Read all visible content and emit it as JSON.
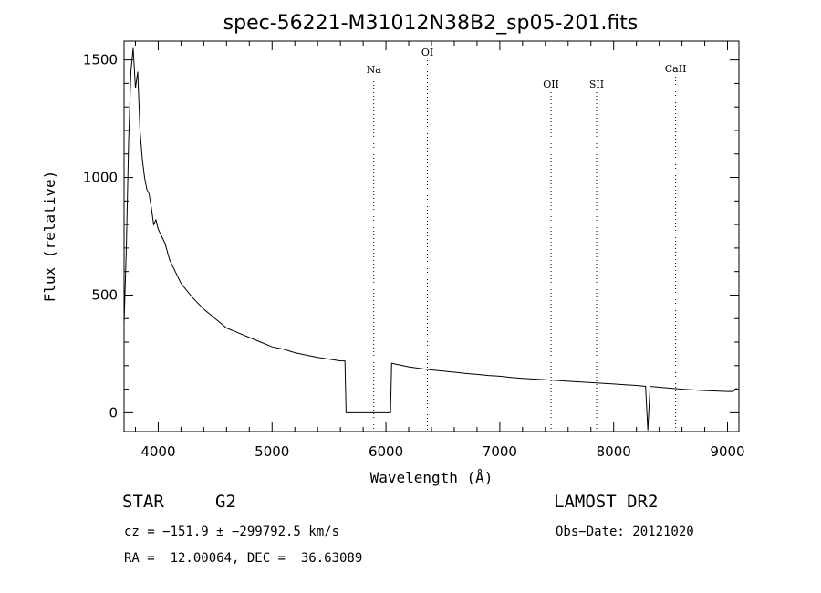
{
  "chart_data": {
    "type": "line",
    "title": "spec-56221-M31012N38B2_sp05-201.fits",
    "xlabel": "Wavelength (Å)",
    "ylabel": "Flux (relative)",
    "xlim": [
      3700,
      9100
    ],
    "ylim": [
      -80,
      1580
    ],
    "xticks": [
      4000,
      5000,
      6000,
      7000,
      8000,
      9000
    ],
    "yticks": [
      0,
      500,
      1000,
      1500
    ],
    "grid": false,
    "series": [
      {
        "values": [
          [
            3700,
            380
          ],
          [
            3720,
            700
          ],
          [
            3740,
            1150
          ],
          [
            3760,
            1450
          ],
          [
            3780,
            1550
          ],
          [
            3800,
            1380
          ],
          [
            3820,
            1450
          ],
          [
            3840,
            1200
          ],
          [
            3860,
            1080
          ],
          [
            3880,
            1000
          ],
          [
            3900,
            950
          ],
          [
            3920,
            930
          ],
          [
            3940,
            870
          ],
          [
            3960,
            800
          ],
          [
            3980,
            820
          ],
          [
            4000,
            780
          ],
          [
            4030,
            750
          ],
          [
            4060,
            720
          ],
          [
            4100,
            650
          ],
          [
            4150,
            600
          ],
          [
            4200,
            550
          ],
          [
            4250,
            520
          ],
          [
            4300,
            490
          ],
          [
            4400,
            440
          ],
          [
            4500,
            400
          ],
          [
            4600,
            360
          ],
          [
            4700,
            340
          ],
          [
            4800,
            320
          ],
          [
            4900,
            300
          ],
          [
            5000,
            280
          ],
          [
            5100,
            270
          ],
          [
            5200,
            255
          ],
          [
            5300,
            245
          ],
          [
            5400,
            235
          ],
          [
            5500,
            228
          ],
          [
            5600,
            220
          ],
          [
            5640,
            220
          ],
          [
            5650,
            0
          ],
          [
            6040,
            0
          ],
          [
            6050,
            210
          ],
          [
            6100,
            205
          ],
          [
            6200,
            195
          ],
          [
            6300,
            188
          ],
          [
            6400,
            182
          ],
          [
            6500,
            177
          ],
          [
            6600,
            172
          ],
          [
            6700,
            167
          ],
          [
            6800,
            163
          ],
          [
            6900,
            158
          ],
          [
            7000,
            155
          ],
          [
            7100,
            150
          ],
          [
            7200,
            146
          ],
          [
            7300,
            143
          ],
          [
            7400,
            140
          ],
          [
            7500,
            137
          ],
          [
            7600,
            134
          ],
          [
            7700,
            131
          ],
          [
            7800,
            128
          ],
          [
            7900,
            125
          ],
          [
            8000,
            122
          ],
          [
            8100,
            119
          ],
          [
            8200,
            116
          ],
          [
            8280,
            112
          ],
          [
            8300,
            -75
          ],
          [
            8320,
            112
          ],
          [
            8400,
            108
          ],
          [
            8500,
            104
          ],
          [
            8600,
            100
          ],
          [
            8700,
            97
          ],
          [
            8800,
            94
          ],
          [
            8900,
            92
          ],
          [
            9000,
            90
          ],
          [
            9050,
            90
          ],
          [
            9080,
            105
          ]
        ]
      }
    ],
    "lines": [
      {
        "label": "Na",
        "x": 5893
      },
      {
        "label": "OI",
        "x": 6364
      },
      {
        "label": "OII",
        "x": 7450
      },
      {
        "label": "SII",
        "x": 7850
      },
      {
        "label": "CaII",
        "x": 8544
      }
    ]
  },
  "footer": {
    "object_type": "STAR",
    "subclass": "G2",
    "survey": "LAMOST DR2",
    "cz": "cz = −151.9 ± −299792.5 km/s",
    "obs_date": "Obs−Date: 20121020",
    "coords": "RA =  12.00064, DEC =  36.63089"
  }
}
